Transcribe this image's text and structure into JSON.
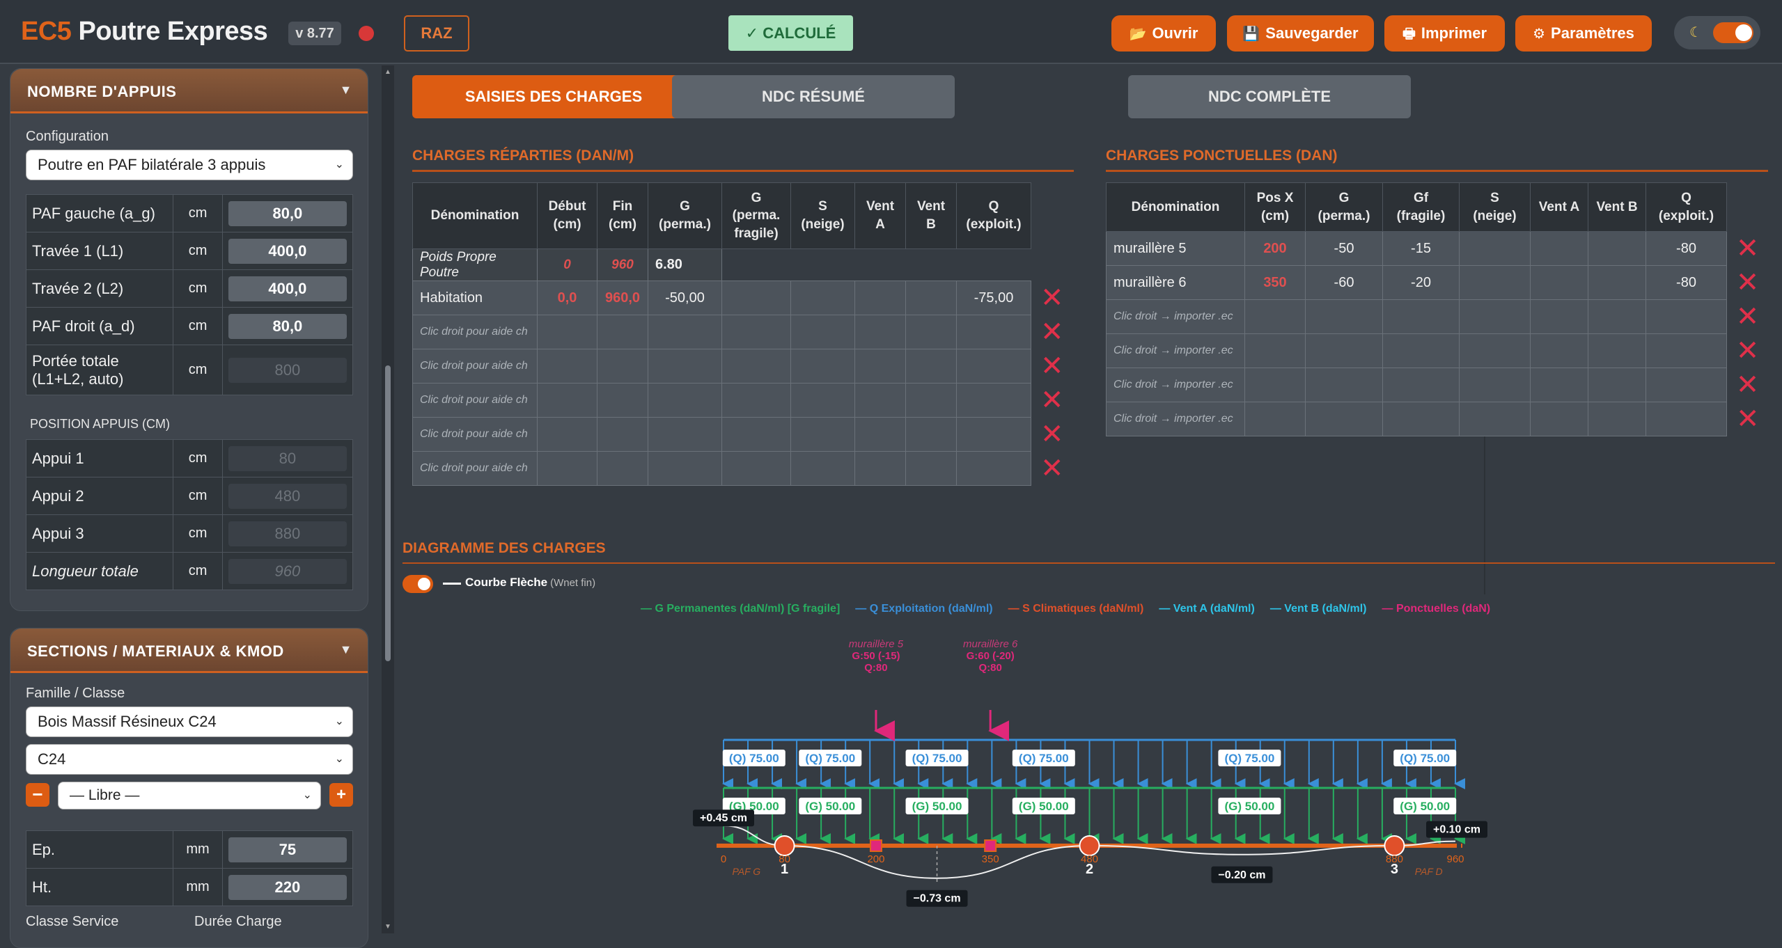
{
  "app": {
    "brand_ec5": "EC5",
    "brand_name": "Poutre Express",
    "version": "v 8.77",
    "raz": "RAZ",
    "status": "✓ CALCULÉ",
    "buttons": [
      "Ouvrir",
      "Sauvegarder",
      "Imprimer",
      "Paramètres"
    ]
  },
  "supports_panel": {
    "title": "NOMBRE D'APPUIS",
    "config_label": "Configuration",
    "config_value": "Poutre en PAF bilatérale 3 appuis",
    "rows": [
      {
        "label": "PAF gauche (a_g)",
        "unit": "cm",
        "value": "80,0"
      },
      {
        "label": "Travée 1 (L1)",
        "unit": "cm",
        "value": "400,0"
      },
      {
        "label": "Travée 2 (L2)",
        "unit": "cm",
        "value": "400,0"
      },
      {
        "label": "PAF droit (a_d)",
        "unit": "cm",
        "value": "80,0"
      },
      {
        "label": "Portée totale (L1+L2, auto)",
        "unit": "cm",
        "value": "800"
      }
    ],
    "positions_title": "POSITION APPUIS (CM)",
    "positions": [
      {
        "label": "Appui 1",
        "unit": "cm",
        "value": "80"
      },
      {
        "label": "Appui 2",
        "unit": "cm",
        "value": "480"
      },
      {
        "label": "Appui 3",
        "unit": "cm",
        "value": "880"
      },
      {
        "label": "Longueur totale",
        "unit": "cm",
        "value": "960"
      }
    ]
  },
  "sections_panel": {
    "title": "SECTIONS / MATERIAUX & KMOD",
    "family_label": "Famille / Classe",
    "family_value": "Bois Massif Résineux C24",
    "class_value": "C24",
    "libre_value": "— Libre —",
    "minus": "−",
    "plus": "+",
    "rows": [
      {
        "label": "Ep.",
        "unit": "mm",
        "value": "75"
      },
      {
        "label": "Ht.",
        "unit": "mm",
        "value": "220"
      }
    ],
    "classe_service": "Classe Service",
    "duree_charge": "Durée Charge"
  },
  "tabs": [
    "SAISIES DES CHARGES",
    "NDC RÉSUMÉ",
    "NDC COMPLÈTE"
  ],
  "distributed": {
    "title": "CHARGES RÉPARTIES (DAN/M)",
    "headers": [
      "Dénomination",
      "Début\n(cm)",
      "Fin\n(cm)",
      "G\n(perma.)",
      "G\n(perma.\nfragile)",
      "S\n(neige)",
      "Vent\nA",
      "Vent\nB",
      "Q\n(exploit.)"
    ],
    "self_weight": {
      "name": "Poids Propre Poutre",
      "start": "0",
      "end": "960",
      "g": "6.80"
    },
    "rows": [
      {
        "name": "Habitation",
        "start": "0,0",
        "end": "960,0",
        "g": "-50,00",
        "gf": "",
        "s": "",
        "va": "",
        "vb": "",
        "q": "-75,00"
      }
    ],
    "placeholder": "Clic droit pour aide ch",
    "empty_rows": 5
  },
  "point_loads": {
    "title": "CHARGES PONCTUELLES (DAN)",
    "headers": [
      "Dénomination",
      "Pos X\n(cm)",
      "G\n(perma.)",
      "Gf\n(fragile)",
      "S\n(neige)",
      "Vent A",
      "Vent B",
      "Q\n(exploit.)"
    ],
    "rows": [
      {
        "name": "muraillère 5",
        "x": "200",
        "g": "-50",
        "gf": "-15",
        "s": "",
        "va": "",
        "vb": "",
        "q": "-80"
      },
      {
        "name": "muraillère 6",
        "x": "350",
        "g": "-60",
        "gf": "-20",
        "s": "",
        "va": "",
        "vb": "",
        "q": "-80"
      }
    ],
    "placeholder": "Clic droit → importer .ec",
    "empty_rows": 4
  },
  "diagram": {
    "title": "DIAGRAMME DES CHARGES",
    "courbe_label": "Courbe Flèche",
    "courbe_note": "(Wnet fin)",
    "legend": [
      {
        "text": "— G Permanentes (daN/ml) [G fragile]",
        "color": "#27ae60"
      },
      {
        "text": "— Q Exploitation (daN/ml)",
        "color": "#3a8fd8"
      },
      {
        "text": "— S Climatiques (daN/ml)",
        "color": "#e0502a"
      },
      {
        "text": "— Vent A (daN/ml)",
        "color": "#2ec4e8"
      },
      {
        "text": "— Vent B (daN/ml)",
        "color": "#2ec4e8"
      },
      {
        "text": "— Ponctuelles (daN)",
        "color": "#e0287a"
      }
    ],
    "beam_length_cm": 960,
    "q_label": "(Q) 75.00",
    "g_label": "(G) 50.00",
    "load_label_positions_cm": [
      40,
      140,
      280,
      420,
      690,
      920
    ],
    "point_loads": [
      {
        "x_cm": 200,
        "name": "muraillère 5",
        "g": "G:50 (-15)",
        "q": "Q:80"
      },
      {
        "x_cm": 350,
        "name": "muraillère 6",
        "g": "G:60 (-20)",
        "q": "Q:80"
      }
    ],
    "supports": [
      {
        "x_cm": 80,
        "number": "1"
      },
      {
        "x_cm": 480,
        "number": "2"
      },
      {
        "x_cm": 880,
        "number": "3"
      }
    ],
    "axis_ticks": [
      "0",
      "80",
      "200",
      "350",
      "480",
      "880",
      "960"
    ],
    "paf_g": "PAF G",
    "paf_d": "PAF D",
    "deflections": [
      {
        "x_cm": 0,
        "value_cm": 0.45,
        "label": "+0.45 cm"
      },
      {
        "x_cm": 280,
        "value_cm": -0.73,
        "label": "−0.73 cm"
      },
      {
        "x_cm": 680,
        "value_cm": -0.2,
        "label": "−0.20 cm"
      },
      {
        "x_cm": 960,
        "value_cm": 0.1,
        "label": "+0.10 cm"
      }
    ]
  }
}
